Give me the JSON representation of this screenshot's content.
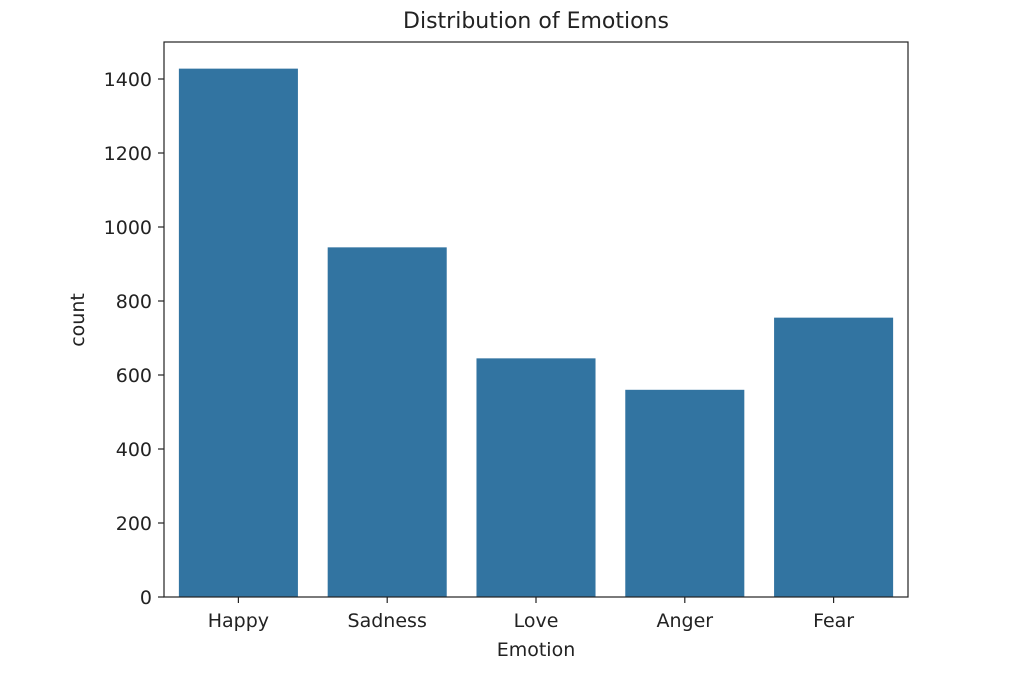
{
  "chart_data": {
    "type": "bar",
    "title": "Distribution of Emotions",
    "xlabel": "Emotion",
    "ylabel": "count",
    "categories": [
      "Happy",
      "Sadness",
      "Love",
      "Anger",
      "Fear"
    ],
    "values": [
      1428,
      945,
      645,
      560,
      755
    ],
    "ylim": [
      0,
      1500
    ],
    "yticks": [
      0,
      200,
      400,
      600,
      800,
      1000,
      1200,
      1400
    ],
    "grid": false,
    "colors": {
      "bar": "#3274a1",
      "axis": "#222222"
    }
  }
}
